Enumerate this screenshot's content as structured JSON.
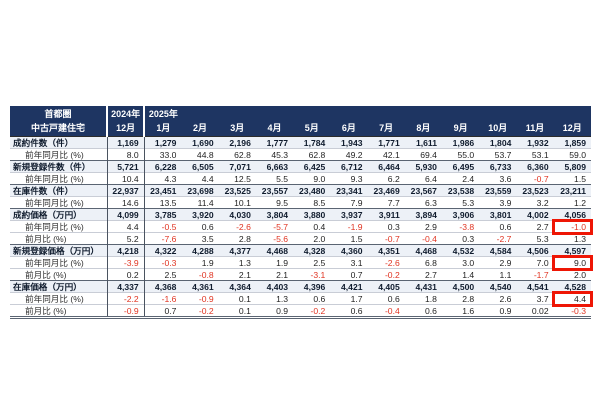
{
  "page": {
    "background": "#ffffff"
  },
  "colors": {
    "header_bg": "#1e3562",
    "header_text": "#ffffff",
    "group_row_bg": "#edf1f7",
    "negative_value": "#e03422",
    "highlight_box": "#ee1605",
    "grid_line": "#c9cdd6",
    "group_separator": "#5a6472"
  },
  "chart_data": {
    "type": "table",
    "title": "首都圏 中古戸建住宅 月次データ",
    "columns": [
      "2024年12月",
      "2025年1月",
      "2月",
      "3月",
      "4月",
      "5月",
      "6月",
      "7月",
      "8月",
      "9月",
      "10月",
      "11月",
      "12月"
    ],
    "rows_note": "values mirror table.rows below"
  },
  "table": {
    "corner": {
      "line1": "首都圏",
      "line2": "中古戸建住宅"
    },
    "columns": [
      {
        "top": "2024年",
        "bottom": "12月",
        "white_sep_after": true,
        "body_sep_after": true
      },
      {
        "top": "2025年",
        "bottom": "1月",
        "white_sep_after": false,
        "body_sep_after": false
      },
      {
        "top": "",
        "bottom": "2月",
        "white_sep_after": false,
        "body_sep_after": false
      },
      {
        "top": "",
        "bottom": "3月",
        "white_sep_after": false,
        "body_sep_after": false
      },
      {
        "top": "",
        "bottom": "4月",
        "white_sep_after": false,
        "body_sep_after": false
      },
      {
        "top": "",
        "bottom": "5月",
        "white_sep_after": false,
        "body_sep_after": false
      },
      {
        "top": "",
        "bottom": "6月",
        "white_sep_after": false,
        "body_sep_after": false
      },
      {
        "top": "",
        "bottom": "7月",
        "white_sep_after": false,
        "body_sep_after": false
      },
      {
        "top": "",
        "bottom": "8月",
        "white_sep_after": false,
        "body_sep_after": false
      },
      {
        "top": "",
        "bottom": "9月",
        "white_sep_after": false,
        "body_sep_after": false
      },
      {
        "top": "",
        "bottom": "10月",
        "white_sep_after": false,
        "body_sep_after": false
      },
      {
        "top": "",
        "bottom": "11月",
        "white_sep_after": false,
        "body_sep_after": false
      },
      {
        "top": "",
        "bottom": "12月",
        "white_sep_after": false,
        "body_sep_after": false
      }
    ],
    "rows": [
      {
        "label": "成約件数（件）",
        "type": "group",
        "highlight_cols": [],
        "values": [
          "1,169",
          "1,279",
          "1,690",
          "2,196",
          "1,777",
          "1,784",
          "1,943",
          "1,771",
          "1,611",
          "1,986",
          "1,804",
          "1,932",
          "1,859"
        ]
      },
      {
        "label": "前年同月比 (%)",
        "type": "sub",
        "highlight_cols": [],
        "values": [
          "8.0",
          "33.0",
          "44.8",
          "62.8",
          "45.3",
          "62.8",
          "49.2",
          "42.1",
          "69.4",
          "55.0",
          "53.7",
          "53.1",
          "59.0"
        ]
      },
      {
        "label": "新規登録件数（件）",
        "type": "group",
        "highlight_cols": [],
        "values": [
          "5,721",
          "6,228",
          "6,505",
          "7,071",
          "6,663",
          "6,425",
          "6,712",
          "6,464",
          "5,930",
          "6,495",
          "6,733",
          "6,360",
          "5,809"
        ]
      },
      {
        "label": "前年同月比 (%)",
        "type": "sub",
        "highlight_cols": [],
        "values": [
          "10.4",
          "4.3",
          "4.4",
          "12.5",
          "5.5",
          "9.0",
          "9.3",
          "6.2",
          "6.4",
          "2.4",
          "3.6",
          "-0.7",
          "1.5"
        ]
      },
      {
        "label": "在庫件数（件）",
        "type": "group",
        "highlight_cols": [],
        "values": [
          "22,937",
          "23,451",
          "23,698",
          "23,525",
          "23,557",
          "23,480",
          "23,341",
          "23,469",
          "23,567",
          "23,538",
          "23,559",
          "23,523",
          "23,211"
        ]
      },
      {
        "label": "前年同月比 (%)",
        "type": "sub",
        "highlight_cols": [],
        "values": [
          "14.6",
          "13.5",
          "11.4",
          "10.1",
          "9.5",
          "8.5",
          "7.9",
          "7.7",
          "6.3",
          "5.3",
          "3.9",
          "3.2",
          "1.2"
        ]
      },
      {
        "label": "成約価格（万円）",
        "type": "group",
        "highlight_cols": [],
        "values": [
          "4,099",
          "3,785",
          "3,920",
          "4,030",
          "3,804",
          "3,880",
          "3,937",
          "3,911",
          "3,894",
          "3,906",
          "3,801",
          "4,002",
          "4,056"
        ]
      },
      {
        "label": "前年同月比 (%)",
        "type": "sub",
        "highlight_cols": [
          12
        ],
        "values": [
          "4.4",
          "-0.5",
          "0.6",
          "-2.6",
          "-5.7",
          "0.4",
          "-1.9",
          "0.3",
          "2.9",
          "-3.8",
          "0.6",
          "2.7",
          "-1.0"
        ]
      },
      {
        "label": "前月比 (%)",
        "type": "sub",
        "highlight_cols": [],
        "values": [
          "5.2",
          "-7.6",
          "3.5",
          "2.8",
          "-5.6",
          "2.0",
          "1.5",
          "-0.7",
          "-0.4",
          "0.3",
          "-2.7",
          "5.3",
          "1.3"
        ]
      },
      {
        "label": "新規登録価格（万円）",
        "type": "group",
        "highlight_cols": [],
        "values": [
          "4,218",
          "4,322",
          "4,288",
          "4,377",
          "4,468",
          "4,328",
          "4,360",
          "4,351",
          "4,468",
          "4,532",
          "4,584",
          "4,506",
          "4,597"
        ]
      },
      {
        "label": "前年同月比 (%)",
        "type": "sub",
        "highlight_cols": [
          12
        ],
        "values": [
          "-3.9",
          "-0.3",
          "1.9",
          "1.3",
          "1.9",
          "2.5",
          "3.1",
          "-2.6",
          "6.8",
          "3.0",
          "2.9",
          "7.0",
          "9.0"
        ]
      },
      {
        "label": "前月比 (%)",
        "type": "sub",
        "highlight_cols": [],
        "values": [
          "0.2",
          "2.5",
          "-0.8",
          "2.1",
          "2.1",
          "-3.1",
          "0.7",
          "-0.2",
          "2.7",
          "1.4",
          "1.1",
          "-1.7",
          "2.0"
        ]
      },
      {
        "label": "在庫価格（万円）",
        "type": "group",
        "highlight_cols": [],
        "values": [
          "4,337",
          "4,368",
          "4,361",
          "4,364",
          "4,403",
          "4,396",
          "4,421",
          "4,405",
          "4,431",
          "4,500",
          "4,540",
          "4,541",
          "4,528"
        ]
      },
      {
        "label": "前年同月比 (%)",
        "type": "sub",
        "highlight_cols": [
          12
        ],
        "values": [
          "-2.2",
          "-1.6",
          "-0.9",
          "0.1",
          "1.3",
          "0.6",
          "1.7",
          "0.6",
          "1.8",
          "2.8",
          "2.6",
          "3.7",
          "4.4"
        ]
      },
      {
        "label": "前月比 (%)",
        "type": "sub",
        "highlight_cols": [],
        "values": [
          "-0.9",
          "0.7",
          "-0.2",
          "0.1",
          "0.9",
          "-0.2",
          "0.6",
          "-0.4",
          "0.6",
          "1.6",
          "0.9",
          "0.02",
          "-0.3"
        ]
      }
    ]
  }
}
